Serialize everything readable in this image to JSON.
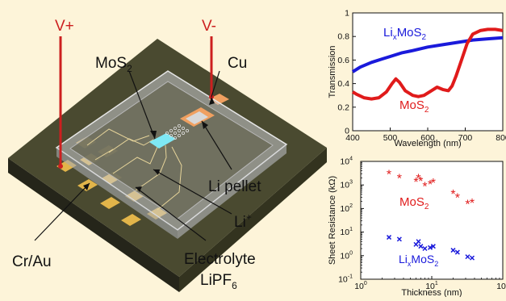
{
  "device": {
    "labels": {
      "v_plus": "V+",
      "v_minus": "V-",
      "mos2": "MoS",
      "mos2_sub": "2",
      "cu": "Cu",
      "li_pellet": "Li pellet",
      "li_ion": "Li",
      "li_ion_sup": "+",
      "cr_au": "Cr/Au",
      "electrolyte": "Electrolyte",
      "lipf6_main": "LiPF",
      "lipf6_sub": "6"
    },
    "colors": {
      "substrate_top": "#4a4a30",
      "substrate_side": "#2a2a1a",
      "pads": "#e2b54a",
      "wires": "#cc1f1f",
      "flake": "#7ee8f5",
      "cu_pad": "#f0a060"
    }
  },
  "chart_data": [
    {
      "type": "line",
      "xlabel": "Wavelength (nm)",
      "ylabel": "Transmission",
      "xlim": [
        400,
        800
      ],
      "ylim": [
        0,
        1
      ],
      "xticks": [
        "400",
        "500",
        "600",
        "700",
        "800"
      ],
      "yticks": [
        "0",
        "0.2",
        "0.4",
        "0.6",
        "0.8",
        "1"
      ],
      "series": [
        {
          "name": "LixMoS2",
          "label_main": "Li",
          "label_x": "x",
          "label_rest": "MoS",
          "label_sub": "2",
          "color": "#1a1adb",
          "x": [
            400,
            420,
            450,
            480,
            500,
            530,
            560,
            600,
            640,
            680,
            720,
            760,
            800
          ],
          "y": [
            0.5,
            0.54,
            0.58,
            0.61,
            0.63,
            0.66,
            0.68,
            0.71,
            0.73,
            0.75,
            0.77,
            0.78,
            0.79
          ]
        },
        {
          "name": "MoS2",
          "label_main": "MoS",
          "label_sub": "2",
          "color": "#e01b1b",
          "x": [
            400,
            410,
            430,
            450,
            470,
            490,
            505,
            515,
            525,
            540,
            560,
            575,
            590,
            610,
            625,
            640,
            655,
            665,
            675,
            690,
            705,
            720,
            740,
            760,
            780,
            800
          ],
          "y": [
            0.33,
            0.31,
            0.28,
            0.27,
            0.28,
            0.33,
            0.4,
            0.44,
            0.41,
            0.34,
            0.3,
            0.29,
            0.3,
            0.34,
            0.37,
            0.35,
            0.34,
            0.38,
            0.46,
            0.6,
            0.74,
            0.82,
            0.85,
            0.86,
            0.86,
            0.85
          ]
        }
      ]
    },
    {
      "type": "scatter",
      "xlabel": "Thickness (nm)",
      "ylabel": "Sheet Resistance (kΩ)",
      "xscale": "log",
      "yscale": "log",
      "xlim": [
        1,
        100
      ],
      "ylim": [
        0.1,
        10000
      ],
      "xticks": [
        {
          "value": 1,
          "base": "10",
          "exp": "0"
        },
        {
          "value": 10,
          "base": "10",
          "exp": "1"
        },
        {
          "value": 100,
          "base": "10",
          "exp": "2"
        }
      ],
      "yticks": [
        {
          "value": 0.1,
          "base": "10",
          "exp": "-1"
        },
        {
          "value": 1,
          "base": "10",
          "exp": "0"
        },
        {
          "value": 10,
          "base": "10",
          "exp": "1"
        },
        {
          "value": 100,
          "base": "10",
          "exp": "2"
        },
        {
          "value": 1000,
          "base": "10",
          "exp": "3"
        },
        {
          "value": 10000,
          "base": "10",
          "exp": "4"
        }
      ],
      "series": [
        {
          "name": "MoS2",
          "label_main": "MoS",
          "label_sub": "2",
          "marker": "*",
          "color": "#e01b1b",
          "x": [
            2.5,
            3.5,
            6,
            6.5,
            7,
            8,
            9.5,
            10.5,
            20,
            23,
            32,
            37
          ],
          "y": [
            3000,
            2000,
            1400,
            2000,
            1500,
            900,
            1100,
            1300,
            420,
            300,
            160,
            180
          ]
        },
        {
          "name": "LixMoS2",
          "label_main": "Li",
          "label_x": "x",
          "label_rest": "MoS",
          "label_sub": "2",
          "marker": "x",
          "color": "#1a1adb",
          "x": [
            2.5,
            3.5,
            6,
            6.5,
            7,
            8,
            9.5,
            10.5,
            20,
            23,
            32,
            37
          ],
          "y": [
            6,
            5,
            3,
            4,
            2.5,
            2,
            2.2,
            2.5,
            1.7,
            1.4,
            0.9,
            0.8
          ]
        }
      ]
    }
  ]
}
